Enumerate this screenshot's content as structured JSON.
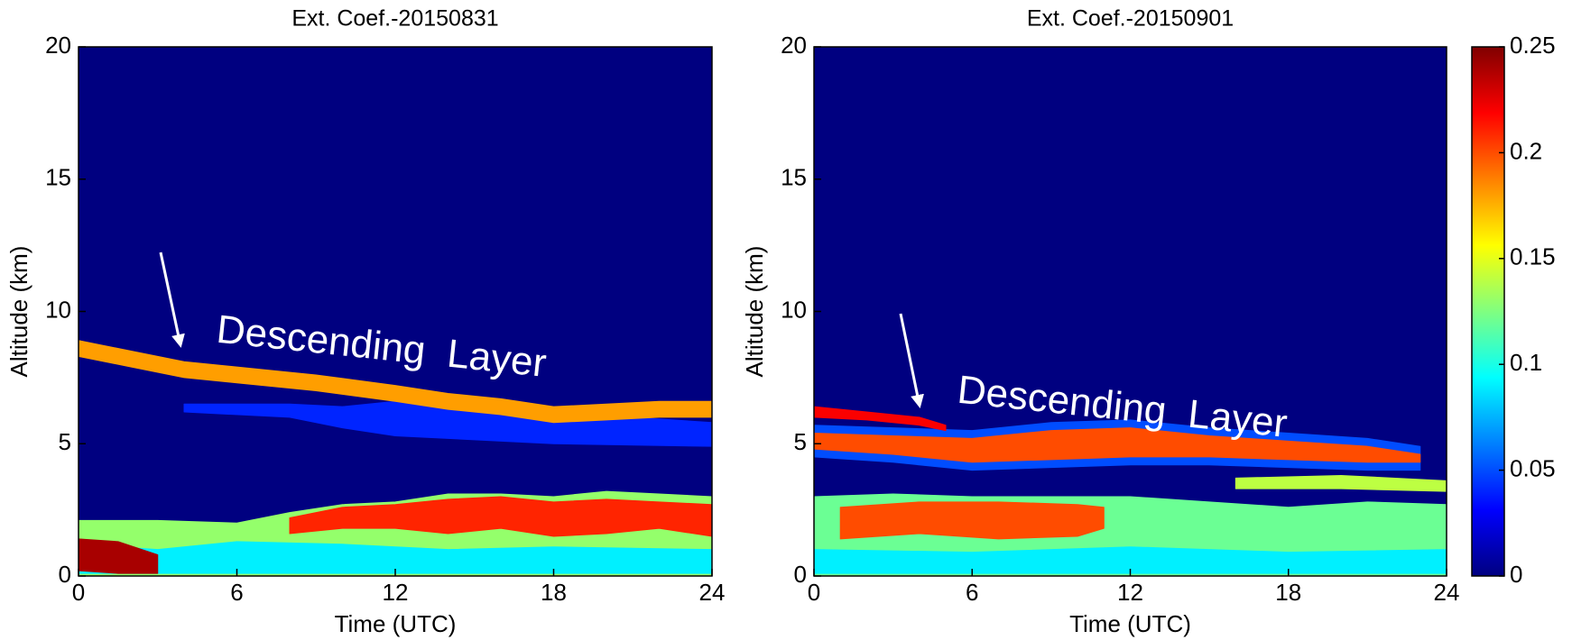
{
  "chart_data": [
    {
      "type": "heatmap",
      "title": "Ext. Coef.-20150831",
      "xlabel": "Time (UTC)",
      "ylabel": "Altitude (km)",
      "xlim": [
        0,
        24
      ],
      "xticks": [
        0,
        6,
        12,
        18,
        24
      ],
      "ylim": [
        0,
        20
      ],
      "yticks": [
        0,
        5,
        10,
        15,
        20
      ],
      "background_value": 0,
      "annotation": "Descending  Layer",
      "layers": [
        {
          "x": [
            4,
            8,
            10,
            12,
            14,
            18,
            24
          ],
          "bottom": [
            6.2,
            6.0,
            5.6,
            5.3,
            5.2,
            5.0,
            4.9
          ],
          "top": [
            6.5,
            6.5,
            6.4,
            6.6,
            6.5,
            6.2,
            5.8
          ],
          "value": 0.04
        },
        {
          "x": [
            0,
            2,
            4,
            6,
            9,
            12,
            14,
            16,
            18,
            20,
            22,
            24
          ],
          "bottom": [
            8.3,
            7.9,
            7.5,
            7.3,
            7.0,
            6.6,
            6.3,
            6.1,
            5.8,
            5.9,
            6.0,
            6.0
          ],
          "top": [
            8.9,
            8.5,
            8.1,
            7.9,
            7.6,
            7.2,
            6.9,
            6.7,
            6.4,
            6.5,
            6.6,
            6.6
          ],
          "value": 0.18
        },
        {
          "x": [
            0,
            3,
            6,
            8,
            10,
            12,
            14,
            16,
            18,
            20,
            22,
            24
          ],
          "bottom": [
            0,
            0,
            0,
            0,
            0,
            0,
            0,
            0,
            0,
            0,
            0,
            0
          ],
          "top": [
            2.1,
            2.1,
            2.0,
            2.4,
            2.7,
            2.8,
            3.1,
            3.1,
            3.0,
            3.2,
            3.1,
            3.0
          ],
          "value": 0.13
        },
        {
          "x": [
            8,
            10,
            12,
            14,
            16,
            18,
            20,
            22,
            24
          ],
          "bottom": [
            1.6,
            1.8,
            1.8,
            1.6,
            1.8,
            1.5,
            1.6,
            1.8,
            1.5
          ],
          "top": [
            2.2,
            2.6,
            2.7,
            2.9,
            3.0,
            2.8,
            2.9,
            2.8,
            2.7
          ],
          "value": 0.21
        },
        {
          "x": [
            0,
            3,
            6,
            10,
            14,
            18,
            24
          ],
          "bottom": [
            0.1,
            0.1,
            0.1,
            0.1,
            0.1,
            0.1,
            0.1
          ],
          "top": [
            1.2,
            1.0,
            1.3,
            1.2,
            1.0,
            1.1,
            1.0
          ],
          "value": 0.09
        },
        {
          "x": [
            0,
            1.5,
            3
          ],
          "bottom": [
            0.2,
            0.1,
            0.1
          ],
          "top": [
            1.4,
            1.3,
            0.8
          ],
          "value": 0.24
        }
      ]
    },
    {
      "type": "heatmap",
      "title": "Ext. Coef.-20150901",
      "xlabel": "Time (UTC)",
      "ylabel": "Altitude (km)",
      "xlim": [
        0,
        24
      ],
      "xticks": [
        0,
        6,
        12,
        18,
        24
      ],
      "ylim": [
        0,
        20
      ],
      "yticks": [
        0,
        5,
        10,
        15,
        20
      ],
      "background_value": 0,
      "annotation": "Descending  Layer",
      "colorbar": {
        "lim": [
          0,
          0.25
        ],
        "ticks": [
          0,
          0.05,
          0.1,
          0.15,
          0.2,
          0.25
        ]
      },
      "layers": [
        {
          "x": [
            0,
            3,
            6,
            9,
            12,
            15,
            18,
            21,
            23
          ],
          "bottom": [
            4.5,
            4.3,
            4.0,
            4.1,
            4.2,
            4.2,
            4.1,
            4.0,
            4.0
          ],
          "top": [
            5.7,
            5.6,
            5.5,
            5.8,
            5.9,
            5.6,
            5.4,
            5.2,
            4.9
          ],
          "value": 0.05
        },
        {
          "x": [
            0,
            3,
            6,
            9,
            12,
            15,
            18,
            21,
            23
          ],
          "bottom": [
            4.8,
            4.6,
            4.3,
            4.4,
            4.5,
            4.5,
            4.4,
            4.3,
            4.3
          ],
          "top": [
            5.4,
            5.3,
            5.2,
            5.5,
            5.6,
            5.3,
            5.1,
            4.9,
            4.6
          ],
          "value": 0.2
        },
        {
          "x": [
            0,
            2,
            4,
            5
          ],
          "bottom": [
            6.0,
            5.9,
            5.7,
            5.5
          ],
          "top": [
            6.4,
            6.2,
            6.0,
            5.7
          ],
          "value": 0.22
        },
        {
          "x": [
            0,
            3,
            6,
            9,
            12,
            15,
            18,
            21,
            24
          ],
          "bottom": [
            0,
            0,
            0,
            0,
            0,
            0,
            0,
            0,
            0
          ],
          "top": [
            3.0,
            3.1,
            3.0,
            3.0,
            3.0,
            2.8,
            2.6,
            2.8,
            2.7
          ],
          "value": 0.12
        },
        {
          "x": [
            1,
            4,
            7,
            10,
            11
          ],
          "bottom": [
            1.4,
            1.6,
            1.4,
            1.5,
            1.8
          ],
          "top": [
            2.6,
            2.8,
            2.8,
            2.7,
            2.6
          ],
          "value": 0.2
        },
        {
          "x": [
            0,
            6,
            12,
            18,
            24
          ],
          "bottom": [
            0.1,
            0.1,
            0.1,
            0.1,
            0.1
          ],
          "top": [
            1.0,
            0.9,
            1.1,
            0.9,
            1.0
          ],
          "value": 0.09
        },
        {
          "x": [
            16,
            20,
            24
          ],
          "bottom": [
            3.3,
            3.3,
            3.2
          ],
          "top": [
            3.7,
            3.8,
            3.6
          ],
          "value": 0.14
        }
      ]
    }
  ]
}
